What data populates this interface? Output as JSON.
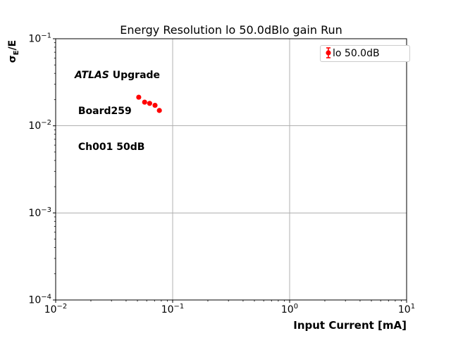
{
  "figure": {
    "background": "#ffffff"
  },
  "chart_data": {
    "type": "scatter",
    "title": "Energy Resolution lo 50.0dBlo gain Run",
    "xlabel": "Input Current [mA]",
    "ylabel": "σ_E/E",
    "xscale": "log",
    "yscale": "log",
    "xlim": [
      0.01,
      10
    ],
    "ylim": [
      0.0001,
      0.1
    ],
    "grid": true,
    "x_tick_exponents": [
      "−2",
      "−1",
      "0",
      "1"
    ],
    "y_tick_exponents": [
      "−1",
      "−2",
      "−3",
      "−4"
    ],
    "tick_base": "10",
    "legend_position": "upper right",
    "series": [
      {
        "name": "lo 50.0dB",
        "color": "#ff0000",
        "marker": "circle-with-errorbar",
        "x": [
          0.0513,
          0.0576,
          0.0636,
          0.0707,
          0.077
        ],
        "y": [
          0.0213,
          0.0187,
          0.0181,
          0.0172,
          0.015
        ]
      }
    ]
  },
  "ylabel_parts": {
    "sigma": "σ",
    "sub": "E",
    "rest": "/E"
  },
  "annotation": {
    "line1_italic": "ATLAS",
    "line1_bold": " Upgrade",
    "line2": " Board259",
    "line3": " Ch001 50dB"
  },
  "colors": {
    "marker": "#ff0000",
    "grid": "#b0b0b0",
    "spine": "#000000",
    "legend_border": "#cccccc"
  }
}
